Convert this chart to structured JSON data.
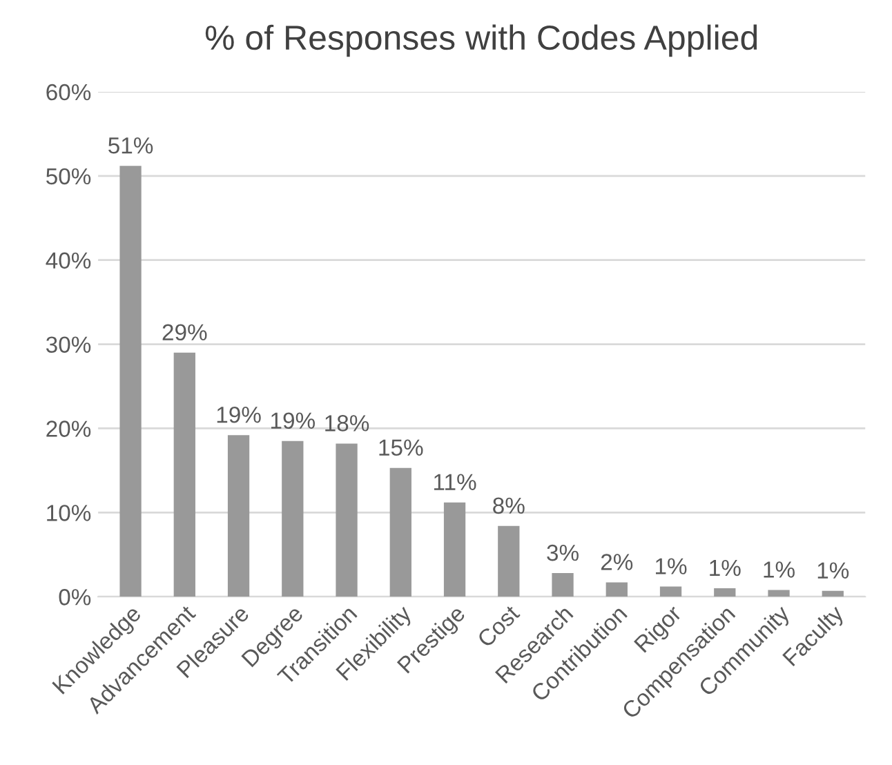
{
  "chart_data": {
    "type": "bar",
    "title": "% of Responses with Codes Applied",
    "categories": [
      "Knowledge",
      "Advancement",
      "Pleasure",
      "Degree",
      "Transition",
      "Flexibility",
      "Prestige",
      "Cost",
      "Research",
      "Contribution",
      "Rigor",
      "Compensation",
      "Community",
      "Faculty"
    ],
    "values": [
      51.2,
      29.0,
      19.2,
      18.5,
      18.2,
      15.3,
      11.2,
      8.4,
      2.8,
      1.7,
      1.2,
      1.0,
      0.8,
      0.7
    ],
    "value_labels": [
      "51%",
      "29%",
      "19%",
      "19%",
      "18%",
      "15%",
      "11%",
      "8%",
      "3%",
      "2%",
      "1%",
      "1%",
      "1%",
      "1%"
    ],
    "color": "#999999",
    "ylim": [
      0,
      60
    ],
    "yticks": [
      {
        "value": 0,
        "label": "0%"
      },
      {
        "value": 10,
        "label": "10%"
      },
      {
        "value": 20,
        "label": "20%"
      },
      {
        "value": 30,
        "label": "30%"
      },
      {
        "value": 40,
        "label": "40%"
      },
      {
        "value": 50,
        "label": "50%"
      },
      {
        "value": 60,
        "label": "60%"
      }
    ],
    "grid": "y",
    "legend": false
  }
}
